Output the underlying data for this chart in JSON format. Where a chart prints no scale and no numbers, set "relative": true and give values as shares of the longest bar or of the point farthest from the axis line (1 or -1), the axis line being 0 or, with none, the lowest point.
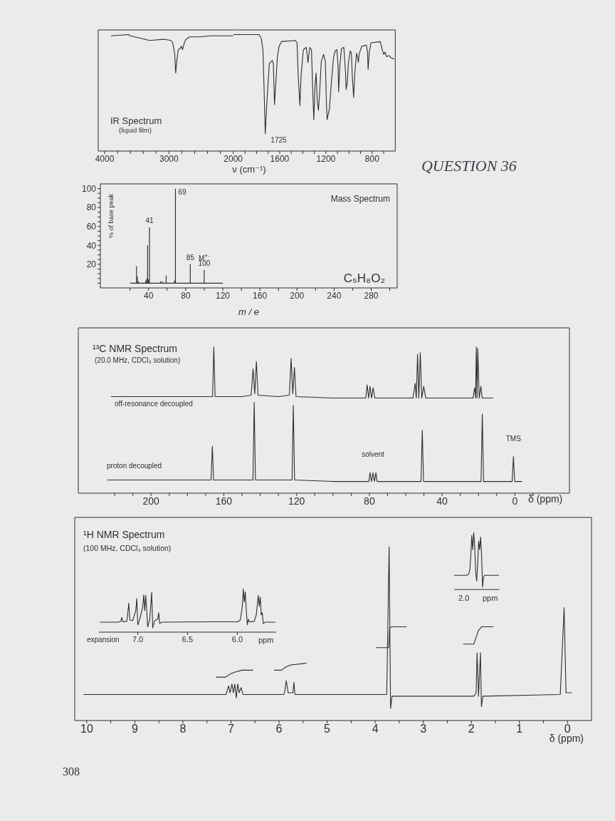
{
  "chart_data": [
    {
      "type": "line",
      "title": "IR Spectrum",
      "subtitle": "(liquid film)",
      "relative": true,
      "xlim": [
        4100,
        2000
      ],
      "xticks": [
        4000,
        {
          "value": 3800,
          "label": null
        },
        {
          "value": 3600,
          "label": null
        },
        {
          "value": 3400,
          "label": null
        },
        {
          "value": 3200,
          "label": null
        },
        3000,
        {
          "value": 2800,
          "label": null
        },
        {
          "value": 2600,
          "label": null
        },
        {
          "value": 2400,
          "label": null
        },
        {
          "value": 2200,
          "label": null
        },
        2000
      ],
      "series": [
        {
          "color": "#2e2e2e",
          "x": [
            3900,
            3630,
            3600,
            3450,
            3300,
            3080,
            2970,
            2940,
            2910,
            2895,
            2875,
            2855,
            2830,
            2805,
            2790,
            2760,
            2735,
            2680,
            2535,
            2350,
            2130,
            2000
          ],
          "values": [
            0.99,
            1.0,
            0.99,
            0.97,
            0.95,
            0.96,
            0.95,
            0.93,
            0.83,
            0.67,
            0.79,
            0.87,
            0.88,
            0.9,
            0.87,
            0.93,
            0.96,
            0.98,
            0.98,
            0.99,
            0.99,
            0.99
          ]
        }
      ]
    },
    {
      "type": "line",
      "xlabel": "ν (cm⁻¹)",
      "relative": true,
      "xlim": [
        2000,
        600
      ],
      "xticks": [
        {
          "value": 1900,
          "label": null
        },
        {
          "value": 1800,
          "label": null
        },
        {
          "value": 1700,
          "label": null
        },
        1600,
        {
          "value": 1500,
          "label": null
        },
        {
          "value": 1400,
          "label": null
        },
        {
          "value": 1300,
          "label": null
        },
        1200,
        {
          "value": 1100,
          "label": null
        },
        {
          "value": 1000,
          "label": null
        },
        {
          "value": 900,
          "label": null
        },
        800,
        {
          "value": 700,
          "label": null
        }
      ],
      "series": [
        {
          "color": "#2e2e2e",
          "x": [
            2000,
            1780,
            1760,
            1745,
            1735,
            1725,
            1710,
            1690,
            1665,
            1655,
            1645,
            1635,
            1620,
            1605,
            1585,
            1465,
            1450,
            1440,
            1425,
            1415,
            1395,
            1370,
            1355,
            1340,
            1325,
            1315,
            1305,
            1295,
            1285,
            1275,
            1265,
            1255,
            1240,
            1220,
            1205,
            1195,
            1190,
            1175,
            1170,
            1155,
            1135,
            1120,
            1105,
            1095,
            1090,
            1080,
            1065,
            1045,
            1030,
            1025,
            1015,
            1005,
            990,
            980,
            970,
            960,
            950,
            935,
            925,
            920,
            910,
            890,
            850,
            840,
            835,
            825,
            810,
            730,
            715,
            700,
            690,
            675,
            655,
            635,
            610
          ],
          "values": [
            1.0,
            1.0,
            0.97,
            0.87,
            0.53,
            0.15,
            0.43,
            0.75,
            0.78,
            0.75,
            0.4,
            0.56,
            0.81,
            0.9,
            0.94,
            0.95,
            0.93,
            0.65,
            0.39,
            0.65,
            0.87,
            0.89,
            0.76,
            0.89,
            0.87,
            0.55,
            0.27,
            0.55,
            0.67,
            0.43,
            0.35,
            0.49,
            0.77,
            0.83,
            0.77,
            0.39,
            0.27,
            0.34,
            0.36,
            0.56,
            0.8,
            0.86,
            0.87,
            0.73,
            0.51,
            0.73,
            0.88,
            0.89,
            0.67,
            0.53,
            0.59,
            0.76,
            0.86,
            0.84,
            0.61,
            0.46,
            0.67,
            0.84,
            0.8,
            0.76,
            0.84,
            0.9,
            0.91,
            0.85,
            0.7,
            0.85,
            0.93,
            0.94,
            0.88,
            0.83,
            0.85,
            0.81,
            0.82,
            0.8,
            0.79
          ]
        }
      ],
      "annotations": [
        {
          "text": "1725",
          "x": 1725,
          "y": 0.15
        },
        "QUESTION 36"
      ]
    },
    {
      "type": "bar",
      "title": "Mass Spectrum",
      "xlabel": "m / e",
      "ylabel": "% of base peak",
      "xlim": [
        -12,
        308
      ],
      "xticks": [
        {
          "value": 20,
          "label": null
        },
        40,
        {
          "value": 60,
          "label": null
        },
        80,
        {
          "value": 100,
          "label": null
        },
        120,
        {
          "value": 140,
          "label": null
        },
        160,
        {
          "value": 180,
          "label": null
        },
        200,
        {
          "value": 220,
          "label": null
        },
        240,
        {
          "value": 260,
          "label": null
        },
        280,
        {
          "value": 300,
          "label": null
        }
      ],
      "ylim": [
        -5,
        105
      ],
      "yticks": [
        {
          "value": 0,
          "label": null
        },
        {
          "value": 5,
          "label": null
        },
        {
          "value": 10,
          "label": null
        },
        {
          "value": 15,
          "label": null
        },
        20,
        {
          "value": 25,
          "label": null
        },
        {
          "value": 30,
          "label": null
        },
        {
          "value": 35,
          "label": null
        },
        40,
        {
          "value": 45,
          "label": null
        },
        {
          "value": 50,
          "label": null
        },
        {
          "value": 55,
          "label": null
        },
        60,
        {
          "value": 65,
          "label": null
        },
        {
          "value": 70,
          "label": null
        },
        {
          "value": 75,
          "label": null
        },
        80,
        {
          "value": 85,
          "label": null
        },
        {
          "value": 90,
          "label": null
        },
        {
          "value": 95,
          "label": null
        },
        100
      ],
      "series": [
        {
          "color": "#2e2e2e",
          "x": [
            27,
            28,
            29,
            37,
            38,
            39,
            40,
            41,
            53,
            55,
            59,
            68,
            69,
            85,
            100
          ],
          "values": [
            18,
            7,
            2,
            3,
            5,
            40,
            4,
            59,
            2,
            2,
            8,
            3,
            100,
            20,
            14
          ]
        },
        {
          "type": "line",
          "color": "#2e2e2e",
          "x": [
            20,
            120
          ],
          "values": [
            0,
            0
          ]
        }
      ],
      "annotations": [
        {
          "text": "41",
          "x": 41,
          "y": 59
        },
        {
          "text": "69",
          "x": 69,
          "y": 100
        },
        {
          "text": "85",
          "x": 85,
          "y": 20
        },
        {
          "text": "100",
          "x": 100,
          "y": 14
        },
        {
          "text": "M$^{+·}$",
          "x": 100,
          "y": 14
        },
        "C₅H₈O₂"
      ]
    },
    {
      "type": "line",
      "title": "¹³C NMR Spectrum",
      "subtitle": "(20.0 MHz, CDCl₃ solution)",
      "xlabel": "δ (ppm)",
      "relative": true,
      "xlim": [
        240,
        -30
      ],
      "xticks": [
        {
          "value": 220,
          "label": null
        },
        {
          "value": 210,
          "label": null
        },
        200,
        {
          "value": 190,
          "label": null
        },
        {
          "value": 180,
          "label": null
        },
        {
          "value": 170,
          "label": null
        },
        160,
        {
          "value": 150,
          "label": null
        },
        {
          "value": 140,
          "label": null
        },
        {
          "value": 130,
          "label": null
        },
        120,
        {
          "value": 110,
          "label": null
        },
        {
          "value": 100,
          "label": null
        },
        {
          "value": 90,
          "label": null
        },
        80,
        {
          "value": 70,
          "label": null
        },
        {
          "value": 60,
          "label": null
        },
        {
          "value": 50,
          "label": null
        },
        40,
        {
          "value": 30,
          "label": null
        },
        {
          "value": 20,
          "label": null
        },
        {
          "value": 10,
          "label": null
        },
        0,
        {
          "value": -10,
          "label": null
        }
      ],
      "series": [
        {
          "name": "off-resonance decoupled",
          "color": "#2e2e2e",
          "x": [
            222,
            200,
            180,
            167,
            166.2,
            165.5,
            164.8,
            150,
            145,
            143.9,
            143,
            142.1,
            141.2,
            130,
            124,
            123,
            122.1,
            121.2,
            120.3,
            100,
            82,
            81.2,
            80.4,
            79.6,
            78.8,
            77.9,
            77,
            60,
            56,
            54.8,
            54.2,
            53.5,
            52.8,
            52,
            51.2,
            50.1,
            49,
            30,
            23,
            22.1,
            21.6,
            21.2,
            20.8,
            20.4,
            19.6,
            18.7,
            18,
            12
          ],
          "values": [
            0.66,
            0.66,
            0.66,
            0.66,
            0.66,
            1.0,
            0.66,
            0.66,
            0.67,
            0.85,
            0.68,
            0.9,
            0.67,
            0.66,
            0.67,
            0.92,
            0.68,
            0.86,
            0.66,
            0.65,
            0.65,
            0.74,
            0.65,
            0.73,
            0.65,
            0.72,
            0.65,
            0.65,
            0.65,
            0.75,
            0.65,
            0.95,
            0.65,
            0.96,
            0.65,
            0.73,
            0.65,
            0.65,
            0.65,
            0.72,
            0.65,
            1.0,
            0.65,
            0.99,
            0.65,
            0.73,
            0.65,
            0.65
          ]
        },
        {
          "name": "proton decoupled",
          "color": "#2e2e2e",
          "x": [
            224,
            200,
            167,
            166.3,
            165.6,
            144,
            143.3,
            142.6,
            122.5,
            121.8,
            121.1,
            100,
            80.3,
            79.6,
            78.8,
            78,
            77.2,
            76.4,
            75.7,
            60,
            51.6,
            50.9,
            50.2,
            18.6,
            17.9,
            17.2,
            1.5,
            0.8,
            0.1,
            -4
          ],
          "values": [
            0.09,
            0.09,
            0.09,
            0.32,
            0.09,
            0.09,
            0.62,
            0.09,
            0.09,
            0.6,
            0.09,
            0.08,
            0.08,
            0.14,
            0.08,
            0.14,
            0.08,
            0.14,
            0.08,
            0.08,
            0.08,
            0.43,
            0.08,
            0.08,
            0.54,
            0.08,
            0.08,
            0.25,
            0.08,
            0.08
          ]
        }
      ],
      "annotations": [
        {
          "text": "solvent",
          "x": 78,
          "y": 0.14
        },
        {
          "text": "TMS",
          "x": 0.8,
          "y": 0.25
        }
      ]
    },
    {
      "type": "line",
      "title": "¹H NMR Spectrum",
      "subtitle": "(100 MHz, CDCl₃ solution)",
      "xlabel": "δ (ppm)",
      "relative": true,
      "xlim": [
        10.25,
        -0.5
      ],
      "xticks": [
        10,
        {
          "value": 9.5,
          "label": null
        },
        9,
        {
          "value": 8.5,
          "label": null
        },
        8,
        {
          "value": 7.5,
          "label": null
        },
        7,
        {
          "value": 6.5,
          "label": null
        },
        6,
        {
          "value": 5.5,
          "label": null
        },
        5,
        {
          "value": 4.5,
          "label": null
        },
        4,
        {
          "value": 3.5,
          "label": null
        },
        3,
        {
          "value": 2.5,
          "label": null
        },
        2,
        {
          "value": 1.5,
          "label": null
        },
        1,
        {
          "value": 0.5,
          "label": null
        },
        0
      ],
      "series": [
        {
          "color": "#2e2e2e",
          "x": [
            10.07,
            7.1,
            7.08,
            7.05,
            7.02,
            6.98,
            6.95,
            6.92,
            6.89,
            6.86,
            6.83,
            6.79,
            6.75,
            5.9,
            5.88,
            5.85,
            5.81,
            5.71,
            5.69,
            5.67,
            3.76,
            3.71,
            3.68,
            3.65,
            1.95,
            1.9,
            1.88,
            1.85,
            1.81,
            1.79,
            1.76,
            0.15,
            0.07,
            0.03,
            -0.09
          ],
          "values": [
            0.15,
            0.15,
            0.17,
            0.2,
            0.16,
            0.21,
            0.16,
            0.21,
            0.13,
            0.21,
            0.16,
            0.19,
            0.15,
            0.15,
            0.17,
            0.23,
            0.16,
            0.16,
            0.22,
            0.15,
            0.15,
            1.0,
            0.07,
            0.14,
            0.14,
            0.16,
            0.39,
            0.14,
            0.39,
            0.08,
            0.14,
            0.15,
            0.65,
            0.16,
            0.16
          ]
        },
        {
          "color": "#2e2e2e",
          "x": [
            7.31,
            7.11,
            7.0,
            6.9,
            6.77,
            6.54,
            6.3,
            6.1,
            5.95,
            5.85,
            5.75,
            5.43,
            4.5,
            3.98,
            3.72,
            3.7,
            3.66,
            3.35,
            2.8,
            2.17,
            1.95,
            1.9,
            1.85,
            1.78,
            1.54
          ],
          "values": [
            0.25,
            0.25,
            0.27,
            0.28,
            0.29,
            0.29,
            null,
            0.29,
            0.29,
            0.31,
            0.32,
            0.33,
            null,
            0.42,
            0.42,
            0.53,
            0.54,
            0.54,
            null,
            0.44,
            0.44,
            0.48,
            0.52,
            0.54,
            0.54
          ]
        }
      ],
      "annotations": [
        "308"
      ]
    },
    {
      "type": "line",
      "title": "expansion",
      "xlabel": "ppm",
      "relative": true,
      "xlim": [
        7.39,
        5.61
      ],
      "xticks": [
        {
          "value": 7,
          "label": "7.0"
        },
        6.5,
        {
          "value": 6,
          "label": "6.0"
        }
      ],
      "series": [
        {
          "color": "#2e2e2e",
          "x": [
            7.38,
            7.2,
            7.17,
            7.16,
            7.15,
            7.11,
            7.09,
            7.08,
            7.05,
            7.02,
            7.01,
            7.0,
            6.98,
            6.95,
            6.94,
            6.93,
            6.92,
            6.9,
            6.88,
            6.86,
            6.85,
            6.83,
            6.8,
            6.79,
            6.78,
            6.76,
            6.3,
            6.0,
            5.97,
            5.95,
            5.94,
            5.93,
            5.92,
            5.91,
            5.9,
            5.89,
            5.88,
            5.83,
            5.81,
            5.79,
            5.78,
            5.77,
            5.76,
            5.75,
            5.74,
            5.72,
            5.62
          ],
          "values": [
            0.23,
            0.23,
            0.25,
            0.34,
            0.24,
            0.25,
            0.67,
            0.28,
            0.27,
            0.5,
            0.78,
            0.17,
            0.3,
            0.6,
            0.86,
            0.5,
            0.85,
            0.12,
            0.3,
            0.92,
            0.1,
            0.27,
            0.3,
            0.45,
            0.2,
            0.23,
            0.24,
            0.24,
            0.28,
            0.6,
            1.0,
            0.7,
            0.93,
            0.5,
            0.17,
            0.3,
            0.24,
            0.25,
            0.4,
            0.85,
            0.6,
            0.81,
            0.4,
            0.45,
            0.2,
            0.23,
            0.23
          ]
        }
      ]
    },
    {
      "type": "line",
      "xlabel": "ppm",
      "relative": true,
      "color": "#2e2e2e",
      "annotations": [
        "2.0"
      ],
      "categories": [
        null,
        null,
        null,
        null,
        null,
        null,
        null,
        null,
        null,
        null,
        null,
        null,
        null,
        null,
        null,
        null,
        null,
        null,
        null,
        null,
        null,
        null,
        null,
        null,
        null,
        null,
        null,
        null,
        null,
        null,
        null,
        null,
        null,
        null,
        null,
        null,
        null,
        null,
        null,
        null,
        null,
        null,
        null,
        null,
        null,
        null,
        null
      ],
      "values": [
        0.25,
        0.25,
        0.25,
        0.25,
        0.25,
        0.25,
        0.25,
        0.25,
        0.25,
        0.25,
        0.25,
        0.25,
        0.25,
        0.25,
        0.26,
        0.28,
        0.35,
        0.6,
        0.95,
        0.7,
        1.0,
        0.75,
        0.3,
        0.15,
        0.45,
        0.85,
        0.7,
        0.92,
        0.6,
        0.04,
        0.22,
        0.25,
        0.25,
        0.25,
        0.25,
        0.25,
        0.25,
        0.25,
        0.25,
        0.25,
        0.25,
        0.25,
        0.25,
        0.25,
        0.25,
        0.25,
        0.25
      ]
    }
  ]
}
